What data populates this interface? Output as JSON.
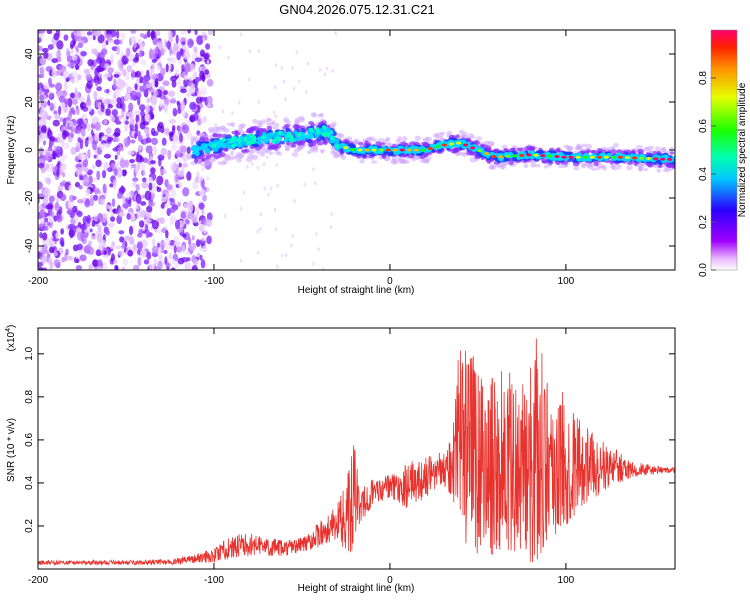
{
  "figure_title": "GN04.2026.075.12.31.C21",
  "chart_data": [
    {
      "type": "heatmap",
      "title": "GN04.2026.075.12.31.C21",
      "xlabel": "Height of straight line (km)",
      "ylabel": "Frequency (Hz)",
      "xlim": [
        -200,
        162
      ],
      "ylim": [
        -50,
        50
      ],
      "x_ticks": [
        -200,
        -100,
        0,
        100
      ],
      "x_tick_labels": [
        "-200",
        "-100",
        "0",
        "100"
      ],
      "y_ticks": [
        -40,
        -20,
        0,
        20,
        40
      ],
      "y_tick_labels": [
        "-40",
        "-20",
        "0",
        "20",
        "40"
      ],
      "colorbar": {
        "label": "Normalized spectral amplitude",
        "range": [
          0,
          1
        ],
        "ticks": [
          0.0,
          0.2,
          0.4,
          0.6,
          0.8
        ],
        "tick_labels": [
          "0.0",
          "0.2",
          "0.4",
          "0.6",
          "0.8"
        ],
        "colormap": "rainbow (white-violet-blue-cyan-green-yellow-red)"
      },
      "ridge": {
        "description": "narrow-band signal near 0 Hz; broadband noise below -110 km",
        "noise_region_x": [
          -200,
          -110
        ],
        "points": [
          {
            "x": -110,
            "f": 0
          },
          {
            "x": -90,
            "f": 3
          },
          {
            "x": -70,
            "f": 5
          },
          {
            "x": -50,
            "f": 6
          },
          {
            "x": -35,
            "f": 8
          },
          {
            "x": -30,
            "f": 2
          },
          {
            "x": -20,
            "f": 0
          },
          {
            "x": 0,
            "f": 0
          },
          {
            "x": 20,
            "f": 0
          },
          {
            "x": 30,
            "f": 2
          },
          {
            "x": 40,
            "f": 3
          },
          {
            "x": 50,
            "f": 0
          },
          {
            "x": 60,
            "f": -3
          },
          {
            "x": 80,
            "f": -2
          },
          {
            "x": 100,
            "f": -3
          },
          {
            "x": 130,
            "f": -3
          },
          {
            "x": 162,
            "f": -4
          }
        ]
      }
    },
    {
      "type": "line",
      "xlabel": "Height of straight line (km)",
      "ylabel": "SNR (10 * v/v)",
      "y_scale_label": "(x10^4)",
      "xlim": [
        -200,
        162
      ],
      "ylim": [
        0,
        1.12
      ],
      "x_ticks": [
        -200,
        -100,
        0,
        100
      ],
      "x_tick_labels": [
        "-200",
        "-100",
        "0",
        "100"
      ],
      "y_ticks": [
        0.2,
        0.4,
        0.6,
        0.8,
        1.0
      ],
      "y_tick_labels": [
        "0.2",
        "0.4",
        "0.6",
        "0.8",
        "1.0"
      ],
      "color": "#e8322d",
      "series": [
        {
          "name": "SNR upper envelope",
          "x": [
            -200,
            -180,
            -160,
            -140,
            -120,
            -110,
            -100,
            -90,
            -80,
            -70,
            -60,
            -50,
            -40,
            -30,
            -25,
            -20,
            -18,
            -15,
            -10,
            0,
            10,
            20,
            30,
            35,
            40,
            45,
            50,
            55,
            60,
            65,
            70,
            75,
            80,
            85,
            90,
            100,
            110,
            120,
            130,
            140,
            150,
            162
          ],
          "values": [
            0.04,
            0.04,
            0.04,
            0.04,
            0.05,
            0.07,
            0.1,
            0.16,
            0.17,
            0.15,
            0.13,
            0.15,
            0.22,
            0.3,
            0.4,
            0.62,
            0.4,
            0.38,
            0.42,
            0.44,
            0.5,
            0.52,
            0.55,
            0.65,
            1.1,
            0.96,
            1.07,
            0.8,
            0.97,
            0.9,
            0.92,
            0.85,
            1.0,
            1.12,
            0.9,
            0.82,
            0.68,
            0.6,
            0.55,
            0.5,
            0.48,
            0.47
          ]
        },
        {
          "name": "SNR lower envelope",
          "x": [
            -200,
            -180,
            -160,
            -140,
            -120,
            -110,
            -100,
            -90,
            -80,
            -70,
            -60,
            -50,
            -40,
            -30,
            -25,
            -20,
            -18,
            -15,
            -10,
            0,
            10,
            20,
            30,
            35,
            40,
            45,
            50,
            55,
            60,
            65,
            70,
            75,
            80,
            85,
            90,
            100,
            110,
            120,
            130,
            140,
            150,
            162
          ],
          "values": [
            0.02,
            0.02,
            0.02,
            0.02,
            0.02,
            0.03,
            0.03,
            0.05,
            0.06,
            0.06,
            0.06,
            0.08,
            0.1,
            0.14,
            0.08,
            0.05,
            0.2,
            0.22,
            0.3,
            0.33,
            0.28,
            0.33,
            0.4,
            0.3,
            0.06,
            0.15,
            0.05,
            0.12,
            0.02,
            0.08,
            0.05,
            0.1,
            0.02,
            0.05,
            0.12,
            0.2,
            0.3,
            0.35,
            0.4,
            0.43,
            0.44,
            0.45
          ]
        }
      ]
    }
  ]
}
